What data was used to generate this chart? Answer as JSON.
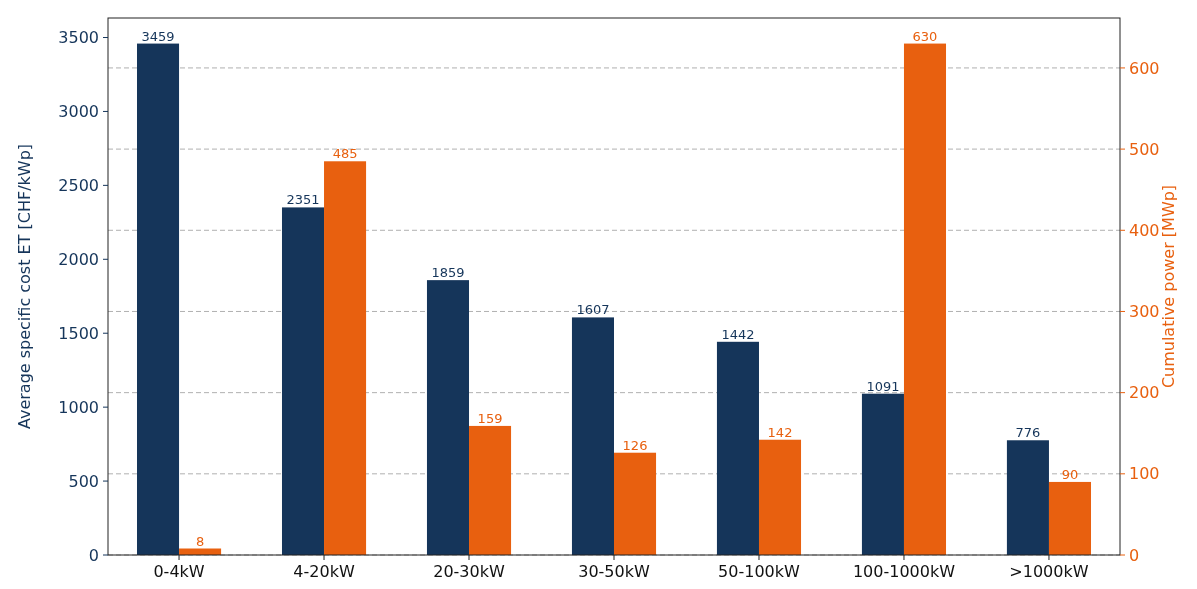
{
  "chart_data": {
    "type": "bar",
    "categories": [
      "0-4kW",
      "4-20kW",
      "20-30kW",
      "30-50kW",
      "50-100kW",
      "100-1000kW",
      ">1000kW"
    ],
    "ylabel": "Average specific cost ET [CHF/kWp]",
    "y2label": "Cumulative power [MWp]",
    "series": [
      {
        "color": "#15355a",
        "values": [
          3459,
          2351,
          1859,
          1607,
          1442,
          1091,
          776
        ]
      },
      {
        "color": "#e8600f",
        "axis": "y2",
        "values": [
          8,
          485,
          159,
          126,
          142,
          630,
          90
        ]
      }
    ],
    "ylim": [
      0,
      3632
    ],
    "yticks": [
      0,
      500,
      1000,
      1500,
      2000,
      2500,
      3000,
      3500
    ],
    "y2lim": [
      0,
      661.5
    ],
    "y2ticks": [
      0,
      100,
      200,
      300,
      400,
      500,
      600
    ],
    "grid": "y2",
    "data_labels": true
  }
}
